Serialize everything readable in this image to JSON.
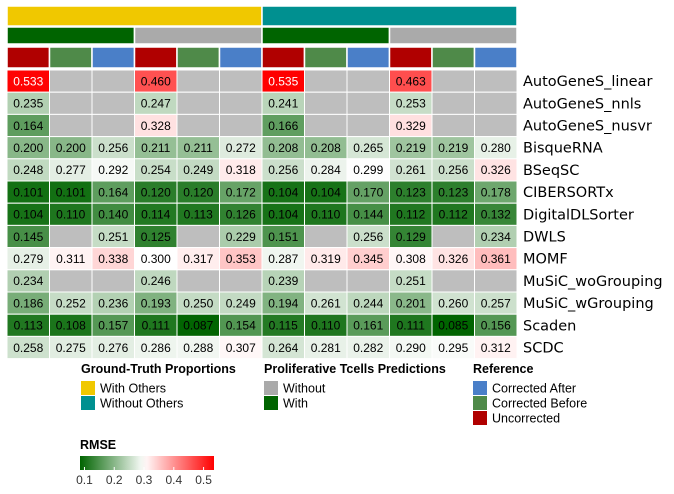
{
  "chart_data": {
    "type": "heatmap",
    "rows": [
      "AutoGeneS_linear",
      "AutoGeneS_nnls",
      "AutoGeneS_nusvr",
      "BisqueRNA",
      "BSeqSC",
      "CIBERSORTx",
      "DigitalDLSorter",
      "DWLS",
      "MOMF",
      "MuSiC_woGrouping",
      "MuSiC_wGrouping",
      "Scaden",
      "SCDC"
    ],
    "values": [
      [
        0.533,
        null,
        null,
        0.46,
        null,
        null,
        0.535,
        null,
        null,
        0.463,
        null,
        null
      ],
      [
        0.235,
        null,
        null,
        0.247,
        null,
        null,
        0.241,
        null,
        null,
        0.253,
        null,
        null
      ],
      [
        0.164,
        null,
        null,
        0.328,
        null,
        null,
        0.166,
        null,
        null,
        0.329,
        null,
        null
      ],
      [
        0.2,
        0.2,
        0.256,
        0.211,
        0.211,
        0.272,
        0.208,
        0.208,
        0.265,
        0.219,
        0.219,
        0.28
      ],
      [
        0.248,
        0.277,
        0.292,
        0.254,
        0.249,
        0.318,
        0.256,
        0.284,
        0.299,
        0.261,
        0.256,
        0.326
      ],
      [
        0.101,
        0.101,
        0.164,
        0.12,
        0.12,
        0.172,
        0.104,
        0.104,
        0.17,
        0.123,
        0.123,
        0.178
      ],
      [
        0.104,
        0.11,
        0.14,
        0.114,
        0.113,
        0.126,
        0.104,
        0.11,
        0.144,
        0.112,
        0.112,
        0.132
      ],
      [
        0.145,
        null,
        0.251,
        0.125,
        null,
        0.229,
        0.151,
        null,
        0.256,
        0.129,
        null,
        0.234
      ],
      [
        0.279,
        0.311,
        0.338,
        0.3,
        0.317,
        0.353,
        0.287,
        0.319,
        0.345,
        0.308,
        0.326,
        0.361
      ],
      [
        0.234,
        null,
        null,
        0.246,
        null,
        null,
        0.239,
        null,
        null,
        0.251,
        null,
        null
      ],
      [
        0.186,
        0.252,
        0.236,
        0.193,
        0.25,
        0.249,
        0.194,
        0.261,
        0.244,
        0.201,
        0.26,
        0.257
      ],
      [
        0.113,
        0.108,
        0.157,
        0.111,
        0.087,
        0.154,
        0.115,
        0.11,
        0.161,
        0.111,
        0.085,
        0.156
      ],
      [
        0.258,
        0.275,
        0.276,
        0.286,
        0.288,
        0.307,
        0.264,
        0.281,
        0.282,
        0.29,
        0.295,
        0.312
      ]
    ],
    "column_annotations": {
      "ground_truth": [
        "With Others",
        "With Others",
        "With Others",
        "With Others",
        "With Others",
        "With Others",
        "Without Others",
        "Without Others",
        "Without Others",
        "Without Others",
        "Without Others",
        "Without Others"
      ],
      "proliferative": [
        "With",
        "With",
        "With",
        "Without",
        "Without",
        "Without",
        "With",
        "With",
        "With",
        "Without",
        "Without",
        "Without"
      ],
      "reference": [
        "Uncorrected",
        "Corrected Before",
        "Corrected After",
        "Uncorrected",
        "Corrected Before",
        "Corrected After",
        "Uncorrected",
        "Corrected Before",
        "Corrected After",
        "Uncorrected",
        "Corrected Before",
        "Corrected After"
      ]
    },
    "legends": [
      {
        "title": "Ground-Truth Proportions",
        "items": [
          {
            "label": "With Others",
            "color": "#f0c800"
          },
          {
            "label": "Without Others",
            "color": "#009090"
          }
        ]
      },
      {
        "title": "Proliferative Tcells Predictions",
        "items": [
          {
            "label": "Without",
            "color": "#aaaaaa"
          },
          {
            "label": "With",
            "color": "#006400"
          }
        ]
      },
      {
        "title": "Reference",
        "items": [
          {
            "label": "Corrected After",
            "color": "#4a7fc8"
          },
          {
            "label": "Corrected Before",
            "color": "#4f8a49"
          },
          {
            "label": "Uncorrected",
            "color": "#b00000"
          }
        ]
      }
    ],
    "colorbar": {
      "title": "RMSE",
      "ticks": [
        0.1,
        0.2,
        0.3,
        0.4,
        0.5
      ],
      "tick_labels": [
        "0.1",
        "0.2",
        "0.3",
        "0.4",
        "0.5"
      ],
      "range": [
        0.085,
        0.535
      ]
    },
    "colors": {
      "na": "#bebebe",
      "low": "#006400",
      "mid": "#ffffff",
      "high": "#ff0000",
      "mid_value": 0.3
    }
  }
}
